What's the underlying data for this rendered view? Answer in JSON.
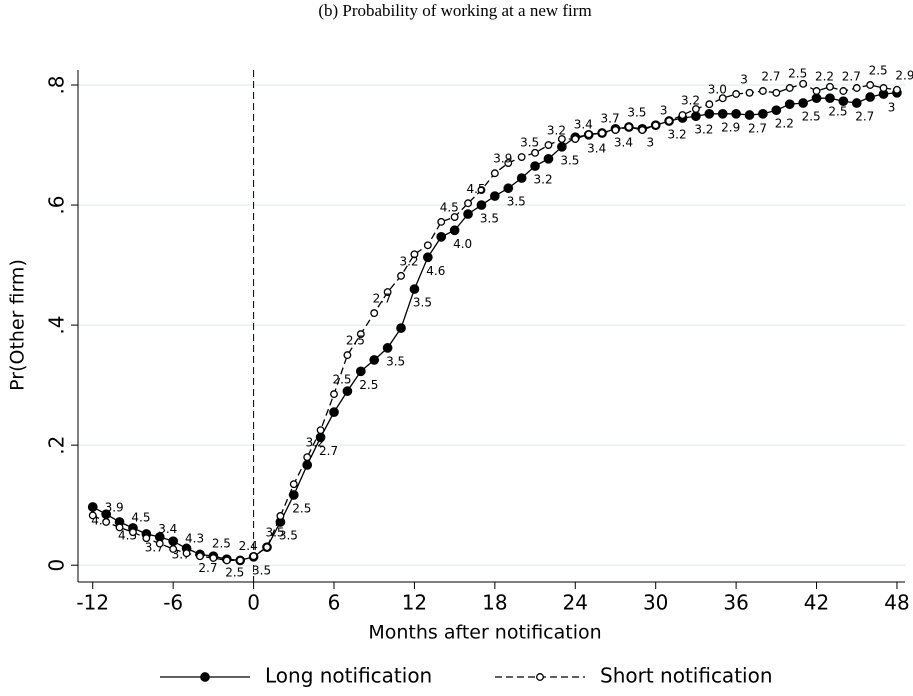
{
  "chart_data": {
    "type": "line",
    "title": "(b) Probability of working at a new firm",
    "x_label": "Months after notification",
    "y_label": "Pr(Other firm)",
    "x": [
      -12,
      -11,
      -10,
      -9,
      -8,
      -7,
      -6,
      -5,
      -4,
      -3,
      -2,
      -1,
      0,
      1,
      2,
      3,
      4,
      5,
      6,
      7,
      8,
      9,
      10,
      11,
      12,
      13,
      14,
      15,
      16,
      17,
      18,
      19,
      20,
      21,
      22,
      23,
      24,
      25,
      26,
      27,
      28,
      29,
      30,
      31,
      32,
      33,
      34,
      35,
      36,
      37,
      38,
      39,
      40,
      41,
      42,
      43,
      44,
      45,
      46,
      47,
      48
    ],
    "xlim": [
      -13.1,
      48.6
    ],
    "xticks": [
      -12,
      -6,
      0,
      6,
      12,
      18,
      24,
      30,
      36,
      42,
      48
    ],
    "ylim": [
      -0.028,
      0.825
    ],
    "yticks": [
      {
        "value": 0,
        "label": "0"
      },
      {
        "value": 0.2,
        "label": ".2"
      },
      {
        "value": 0.4,
        "label": ".4"
      },
      {
        "value": 0.6,
        "label": ".6"
      },
      {
        "value": 0.8,
        "label": ".8"
      }
    ],
    "grid": true,
    "vline": 0,
    "legend": "bottom",
    "series": [
      {
        "name": "Long notification",
        "color": "#000000",
        "marker": "filled",
        "dash": false,
        "values": [
          0.097,
          0.085,
          0.072,
          0.062,
          0.052,
          0.047,
          0.04,
          0.028,
          0.018,
          0.015,
          0.01,
          0.008,
          0.014,
          0.03,
          0.072,
          0.117,
          0.167,
          0.213,
          0.255,
          0.29,
          0.323,
          0.342,
          0.362,
          0.395,
          0.46,
          0.513,
          0.547,
          0.558,
          0.585,
          0.6,
          0.615,
          0.628,
          0.645,
          0.665,
          0.677,
          0.697,
          0.713,
          0.717,
          0.72,
          0.727,
          0.73,
          0.727,
          0.733,
          0.74,
          0.745,
          0.748,
          0.752,
          0.752,
          0.752,
          0.75,
          0.752,
          0.758,
          0.768,
          0.77,
          0.778,
          0.778,
          0.773,
          0.77,
          0.78,
          0.785,
          0.787
        ],
        "point_labels": [
          "4.5",
          null,
          "4.5",
          null,
          "3.7",
          null,
          "3.7",
          null,
          "2.7",
          null,
          "2.5",
          null,
          "3.5",
          null,
          "3.5",
          "2.5",
          null,
          "2.7",
          null,
          null,
          "2.5",
          null,
          "3.5",
          null,
          "3.5",
          "4.6",
          null,
          "4.0",
          null,
          "3.5",
          null,
          "3.5",
          null,
          "3.2",
          null,
          "3.5",
          null,
          "3.4",
          null,
          "3.4",
          null,
          "3",
          null,
          "3.2",
          null,
          "3.2",
          null,
          "2.9",
          null,
          "2.7",
          null,
          "2.2",
          null,
          "2.5",
          null,
          "2.5",
          null,
          "2.7",
          null,
          "3",
          null
        ]
      },
      {
        "name": "Short notification",
        "color": "#000000",
        "marker": "hollow",
        "dash": true,
        "values": [
          0.083,
          0.072,
          0.063,
          0.055,
          0.045,
          0.036,
          0.027,
          0.02,
          0.015,
          0.012,
          0.008,
          0.008,
          0.015,
          0.03,
          0.082,
          0.135,
          0.18,
          0.225,
          0.285,
          0.35,
          0.385,
          0.42,
          0.455,
          0.482,
          0.518,
          0.533,
          0.572,
          0.58,
          0.603,
          0.625,
          0.653,
          0.67,
          0.68,
          0.687,
          0.7,
          0.71,
          0.71,
          0.718,
          0.72,
          0.725,
          0.73,
          0.725,
          0.733,
          0.74,
          0.75,
          0.76,
          0.768,
          0.778,
          0.785,
          0.787,
          0.79,
          0.787,
          0.795,
          0.802,
          0.79,
          0.797,
          0.79,
          0.795,
          0.8,
          0.795,
          0.792
        ],
        "point_labels": [
          null,
          "3.9",
          null,
          "4.5",
          null,
          "3.4",
          null,
          "4.3",
          null,
          "2.5",
          null,
          "2.4",
          null,
          "3.5",
          null,
          null,
          "3.2",
          null,
          "2.5",
          "2.5",
          null,
          "2.7",
          null,
          "3.2",
          null,
          null,
          "4.5",
          null,
          "4.5",
          null,
          "3.9",
          null,
          "3.5",
          null,
          "3.2",
          null,
          "3.4",
          null,
          "3.7",
          null,
          "3.5",
          null,
          "3",
          null,
          "3.2",
          null,
          "3.0",
          null,
          "3",
          null,
          "2.7",
          null,
          "2.5",
          null,
          "2.2",
          null,
          "2.7",
          null,
          "2.5",
          null,
          "2.9"
        ]
      }
    ]
  }
}
